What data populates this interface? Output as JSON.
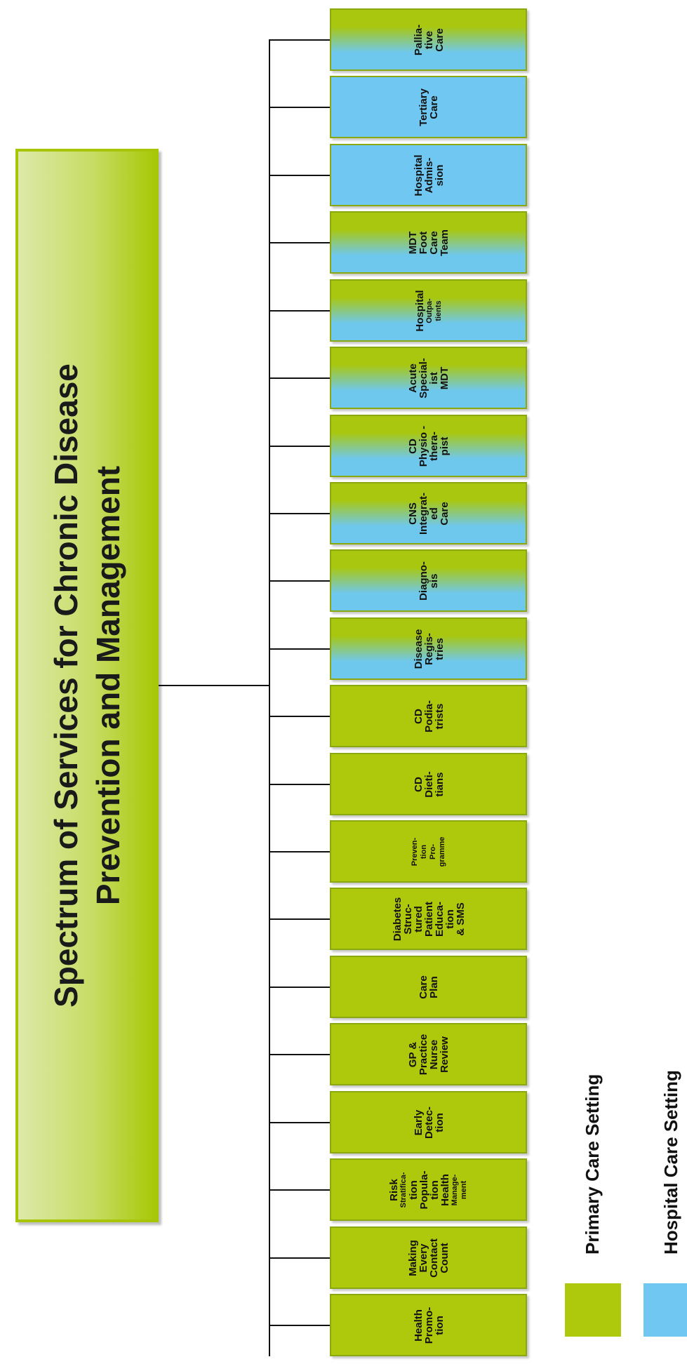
{
  "title": {
    "lines": [
      "Spectrum of Services for Chronic Disease",
      "Prevention and Management"
    ]
  },
  "colors": {
    "primary": "#aec90c",
    "hospital": "#70c8f2",
    "connector": "#111111"
  },
  "services": [
    {
      "lines": [
        "Health",
        "Promo-",
        "tion"
      ],
      "setting": "primary"
    },
    {
      "lines": [
        "Making",
        "Every",
        "Contact",
        "Count"
      ],
      "setting": "primary"
    },
    {
      "lines": [
        "Risk",
        "Stratifica-",
        "tion",
        "Popula-",
        "tion",
        "Health",
        "Manage-",
        "ment"
      ],
      "small": [
        1,
        6,
        7
      ],
      "setting": "primary"
    },
    {
      "lines": [
        "Early",
        "Detec-",
        "tion"
      ],
      "setting": "primary"
    },
    {
      "lines": [
        "GP &",
        "Practice",
        "Nurse",
        "Review"
      ],
      "setting": "primary"
    },
    {
      "lines": [
        "Care",
        "Plan"
      ],
      "setting": "primary"
    },
    {
      "lines": [
        "Diabetes",
        "Struc-",
        "tured",
        "Patient",
        "Educa-",
        "tion",
        "& SMS"
      ],
      "setting": "primary"
    },
    {
      "lines": [
        "Preven-",
        "tion",
        "Pro-",
        "gramme"
      ],
      "small": [
        0,
        1,
        2,
        3
      ],
      "setting": "primary"
    },
    {
      "lines": [
        "CD",
        "Dieti-",
        "tians"
      ],
      "setting": "primary"
    },
    {
      "lines": [
        "CD",
        "Podia-",
        "trists"
      ],
      "setting": "primary"
    },
    {
      "lines": [
        "Disease",
        "Regis-",
        "tries"
      ],
      "setting": "mixed"
    },
    {
      "lines": [
        "Diagno-",
        "sis"
      ],
      "setting": "mixed"
    },
    {
      "lines": [
        "CNS",
        "Integrat-",
        "ed",
        "Care"
      ],
      "setting": "mixed"
    },
    {
      "lines": [
        "CD",
        "Physio -",
        "thera-",
        "pist"
      ],
      "setting": "mixed"
    },
    {
      "lines": [
        "Acute",
        "Special-",
        "ist",
        "MDT"
      ],
      "setting": "mixed"
    },
    {
      "lines": [
        "Hospital",
        "Outpa-",
        "tients"
      ],
      "small": [
        1,
        2
      ],
      "setting": "mixed"
    },
    {
      "lines": [
        "MDT",
        "Foot",
        "Care",
        "Team"
      ],
      "setting": "mixed"
    },
    {
      "lines": [
        "Hospital",
        "Admis-",
        "sion"
      ],
      "setting": "blue"
    },
    {
      "lines": [
        "Tertiary",
        "Care"
      ],
      "setting": "blue"
    },
    {
      "lines": [
        "Pallia-",
        "tive",
        "Care"
      ],
      "setting": "mixed"
    }
  ],
  "legend": {
    "primary_label": "Primary Care Setting",
    "hospital_label": "Hospital Care Setting"
  }
}
